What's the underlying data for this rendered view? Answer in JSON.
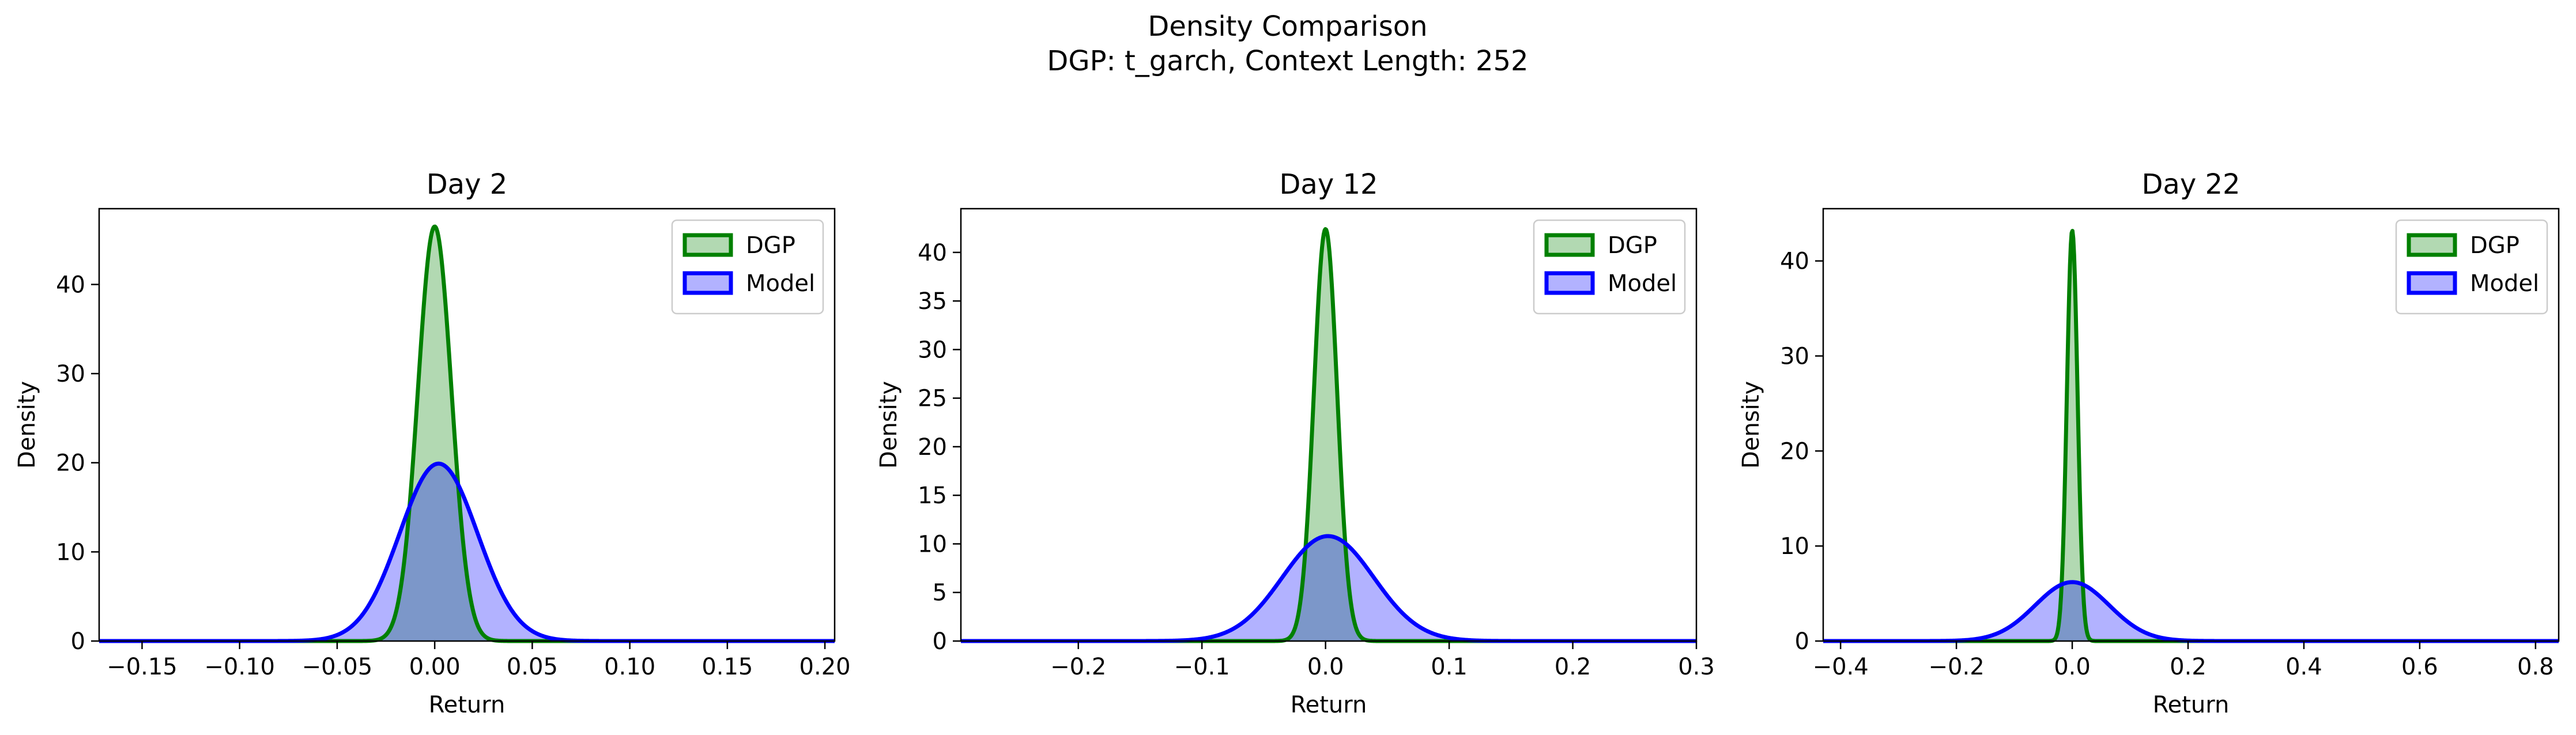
{
  "figure": {
    "title_line1": "Density Comparison",
    "title_line2": "DGP: t_garch, Context Length: 252"
  },
  "colors": {
    "dgp_line": "#008000",
    "dgp_fill": "#008000",
    "model_line": "#0000ff",
    "model_fill": "#0000ff",
    "overlap": "#4f7f8f"
  },
  "chart_data": [
    {
      "type": "area",
      "title": "Day 2",
      "xlabel": "Return",
      "ylabel": "Density",
      "xlim": [
        -0.172,
        0.205
      ],
      "ylim": [
        0,
        48.5
      ],
      "xticks": [
        -0.15,
        -0.1,
        -0.05,
        0.0,
        0.05,
        0.1,
        0.15,
        0.2
      ],
      "xtick_labels": [
        "−0.15",
        "−0.10",
        "−0.05",
        "0.00",
        "0.05",
        "0.10",
        "0.15",
        "0.20"
      ],
      "yticks": [
        0,
        10,
        20,
        30,
        40
      ],
      "legend_position": "top-right",
      "series": [
        {
          "name": "DGP",
          "mean": 0.0,
          "sd": 0.0086,
          "peak": 46.5,
          "x_range": [
            -0.172,
            0.205
          ]
        },
        {
          "name": "Model",
          "mean": 0.002,
          "sd": 0.02,
          "peak": 19.9,
          "x_range": [
            -0.172,
            0.205
          ]
        }
      ]
    },
    {
      "type": "area",
      "title": "Day 12",
      "xlabel": "Return",
      "ylabel": "Density",
      "xlim": [
        -0.295,
        0.3
      ],
      "ylim": [
        0,
        44.5
      ],
      "xticks": [
        -0.2,
        -0.1,
        0.0,
        0.1,
        0.2,
        0.3
      ],
      "xtick_labels": [
        "−0.2",
        "−0.1",
        "0.0",
        "0.1",
        "0.2",
        "0.3"
      ],
      "yticks": [
        0,
        5,
        10,
        15,
        20,
        25,
        30,
        35,
        40
      ],
      "legend_position": "top-right",
      "series": [
        {
          "name": "DGP",
          "mean": 0.0,
          "sd": 0.0094,
          "peak": 42.4,
          "x_range": [
            -0.295,
            0.3
          ]
        },
        {
          "name": "Model",
          "mean": 0.002,
          "sd": 0.037,
          "peak": 10.8,
          "x_range": [
            -0.295,
            0.3
          ]
        }
      ]
    },
    {
      "type": "area",
      "title": "Day 22",
      "xlabel": "Return",
      "ylabel": "Density",
      "xlim": [
        -0.43,
        0.84
      ],
      "ylim": [
        0,
        45.5
      ],
      "xticks": [
        -0.4,
        -0.2,
        0.0,
        0.2,
        0.4,
        0.6,
        0.8
      ],
      "xtick_labels": [
        "−0.4",
        "−0.2",
        "0.0",
        "0.2",
        "0.4",
        "0.6",
        "0.8"
      ],
      "yticks": [
        0,
        10,
        20,
        30,
        40
      ],
      "legend_position": "top-right",
      "series": [
        {
          "name": "DGP",
          "mean": 0.0,
          "sd": 0.0092,
          "peak": 43.2,
          "x_range": [
            -0.43,
            0.84
          ]
        },
        {
          "name": "Model",
          "mean": 0.0,
          "sd": 0.064,
          "peak": 6.2,
          "x_range": [
            -0.43,
            0.84
          ]
        }
      ]
    }
  ]
}
